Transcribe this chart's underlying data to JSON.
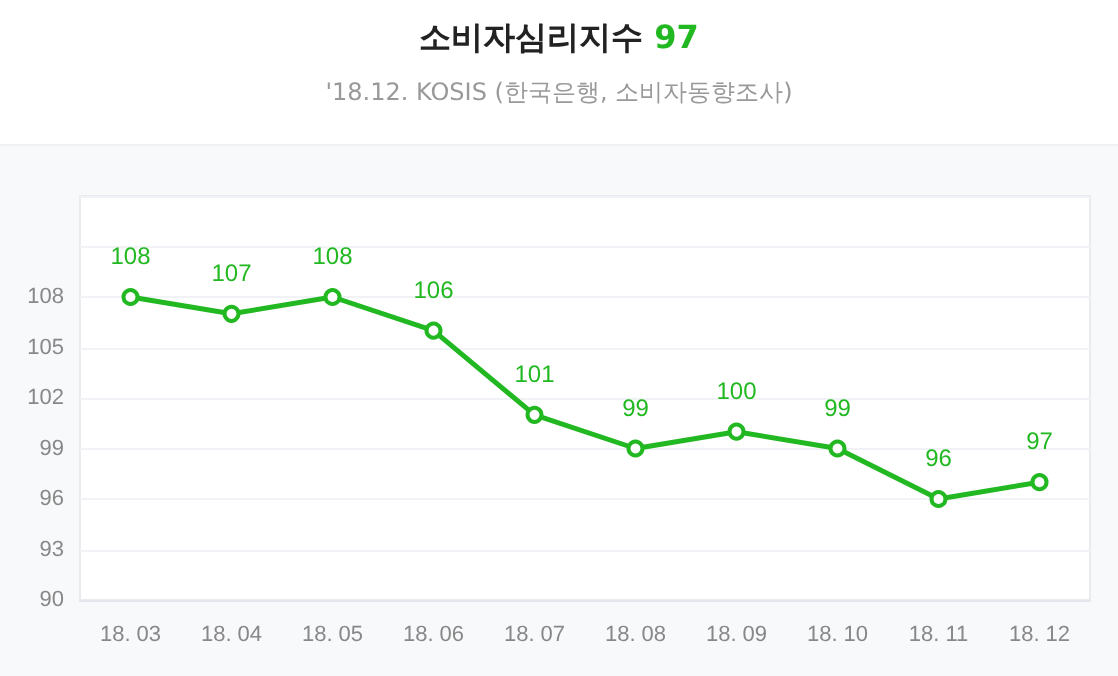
{
  "chart_data": {
    "type": "line",
    "title": "소비자심리지수 97",
    "subtitle": "'18.12. KOSIS (한국은행, 소비자동향조사)",
    "categories": [
      "18. 03",
      "18. 04",
      "18. 05",
      "18. 06",
      "18. 07",
      "18. 08",
      "18. 09",
      "18. 10",
      "18. 11",
      "18. 12"
    ],
    "series": [
      {
        "color": "#22b822",
        "values": [
          108,
          107,
          108,
          106,
          101,
          99,
          100,
          99,
          96,
          97
        ]
      }
    ],
    "ylim": [
      90,
      114
    ],
    "yticks": [
      90,
      93,
      96,
      99,
      102,
      105,
      108,
      {
        "value": 111,
        "label": null
      },
      {
        "value": 114,
        "label": null
      }
    ],
    "grid": "y",
    "data_labels": true,
    "marker": "circle",
    "line_style": "solid"
  }
}
